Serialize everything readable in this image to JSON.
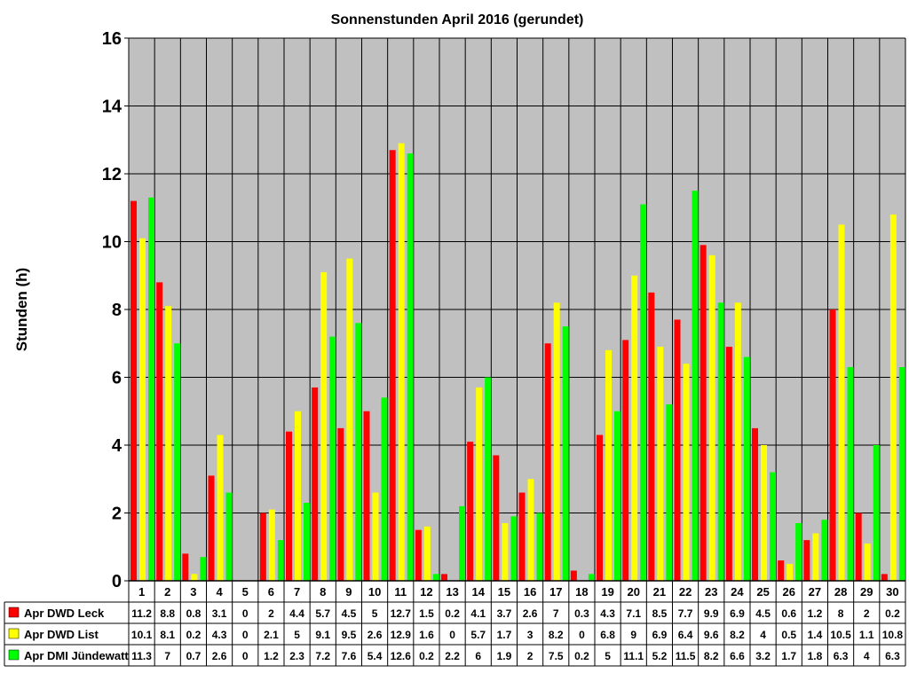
{
  "chart_data": {
    "type": "bar",
    "title": "Sonnenstunden April 2016 (gerundet)",
    "xlabel": "",
    "ylabel": "Stunden (h)",
    "ylim": [
      0,
      16
    ],
    "yticks": [
      "0",
      "2",
      "4",
      "6",
      "8",
      "10",
      "12",
      "14",
      "16"
    ],
    "grid": true,
    "legend": "bottom-left data table",
    "plot_background": "#c0c0c0",
    "categories": [
      "1",
      "2",
      "3",
      "4",
      "5",
      "6",
      "7",
      "8",
      "9",
      "10",
      "11",
      "12",
      "13",
      "14",
      "15",
      "16",
      "17",
      "18",
      "19",
      "20",
      "21",
      "22",
      "23",
      "24",
      "25",
      "26",
      "27",
      "28",
      "29",
      "30"
    ],
    "series": [
      {
        "name": "Apr DWD Leck",
        "color": "#ff0000",
        "values": [
          11.2,
          8.8,
          0.8,
          3.1,
          0,
          2,
          4.4,
          5.7,
          4.5,
          5,
          12.7,
          1.5,
          0.2,
          4.1,
          3.7,
          2.6,
          7,
          0.3,
          4.3,
          7.1,
          8.5,
          7.7,
          9.9,
          6.9,
          4.5,
          0.6,
          1.2,
          8,
          2,
          0.2
        ],
        "labels": [
          "11.2",
          "8.8",
          "0.8",
          "3.1",
          "0",
          "2",
          "4.4",
          "5.7",
          "4.5",
          "5",
          "12.7",
          "1.5",
          "0.2",
          "4.1",
          "3.7",
          "2.6",
          "7",
          "0.3",
          "4.3",
          "7.1",
          "8.5",
          "7.7",
          "9.9",
          "6.9",
          "4.5",
          "0.6",
          "1.2",
          "8",
          "2",
          "0.2"
        ]
      },
      {
        "name": "Apr DWD List",
        "color": "#ffff00",
        "values": [
          10.1,
          8.1,
          0.2,
          4.3,
          0,
          2.1,
          5,
          9.1,
          9.5,
          2.6,
          12.9,
          1.6,
          0,
          5.7,
          1.7,
          3,
          8.2,
          0,
          6.8,
          9,
          6.9,
          6.4,
          9.6,
          8.2,
          4,
          0.5,
          1.4,
          10.5,
          1.1,
          10.8
        ],
        "labels": [
          "10.1",
          "8.1",
          "0.2",
          "4.3",
          "0",
          "2.1",
          "5",
          "9.1",
          "9.5",
          "2.6",
          "12.9",
          "1.6",
          "0",
          "5.7",
          "1.7",
          "3",
          "8.2",
          "0",
          "6.8",
          "9",
          "6.9",
          "6.4",
          "9.6",
          "8.2",
          "4",
          "0.5",
          "1.4",
          "10.5",
          "1.1",
          "10.8"
        ]
      },
      {
        "name": "Apr DMI Jündewatt",
        "color": "#00ff00",
        "values": [
          11.3,
          7,
          0.7,
          2.6,
          0,
          1.2,
          2.3,
          7.2,
          7.6,
          5.4,
          12.6,
          0.2,
          2.2,
          6,
          1.9,
          2,
          7.5,
          0.2,
          5,
          11.1,
          5.2,
          11.5,
          8.2,
          6.6,
          3.2,
          1.7,
          1.8,
          6.3,
          4,
          6.3
        ],
        "labels": [
          "11.3",
          "7",
          "0.7",
          "2.6",
          "0",
          "1.2",
          "2.3",
          "7.2",
          "7.6",
          "5.4",
          "12.6",
          "0.2",
          "2.2",
          "6",
          "1.9",
          "2",
          "7.5",
          "0.2",
          "5",
          "11.1",
          "5.2",
          "11.5",
          "8.2",
          "6.6",
          "3.2",
          "1.7",
          "1.8",
          "6.3",
          "4",
          "6.3"
        ]
      }
    ]
  }
}
